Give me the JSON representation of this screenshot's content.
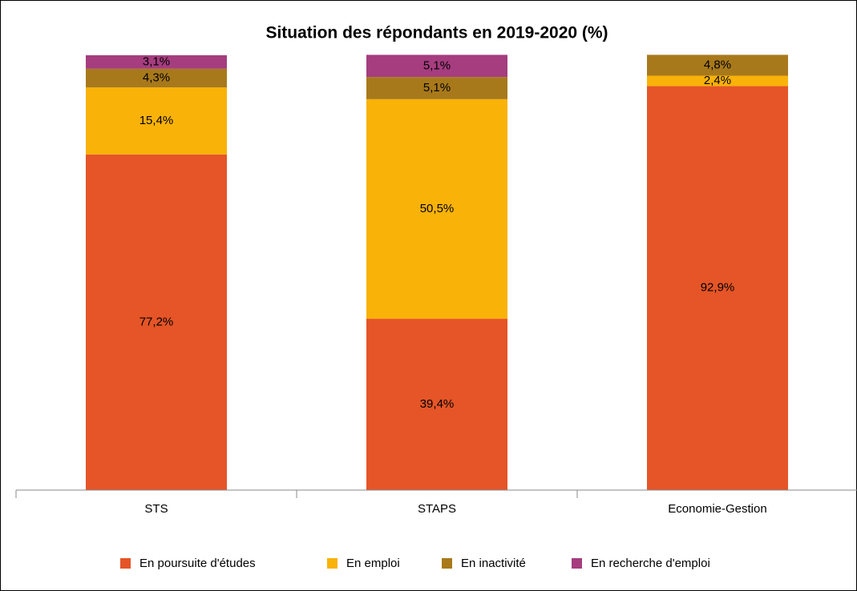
{
  "chart_data": {
    "type": "stacked_bar",
    "title": "Situation des répondants en 2019-2020 (%)",
    "categories": [
      "STS",
      "STAPS",
      "Economie-Gestion"
    ],
    "series": [
      {
        "name": "En poursuite d'études",
        "color": "#e55527",
        "values": [
          77.2,
          39.4,
          92.9
        ],
        "value_labels": [
          "77,2%",
          "39,4%",
          "92,9%"
        ]
      },
      {
        "name": "En emploi",
        "color": "#f9b208",
        "values": [
          15.4,
          50.5,
          2.4
        ],
        "value_labels": [
          "15,4%",
          "50,5%",
          "2,4%"
        ]
      },
      {
        "name": "En inactivité",
        "color": "#a8791b",
        "values": [
          4.3,
          5.1,
          4.8
        ],
        "value_labels": [
          "4,3%",
          "5,1%",
          "4,8%"
        ]
      },
      {
        "name": "En recherche d'emploi",
        "color": "#a53d7f",
        "values": [
          3.1,
          5.1,
          null
        ],
        "value_labels": [
          "3,1%",
          "5,1%",
          null
        ]
      }
    ],
    "ylim": [
      0,
      100
    ],
    "legend": "bottom"
  }
}
